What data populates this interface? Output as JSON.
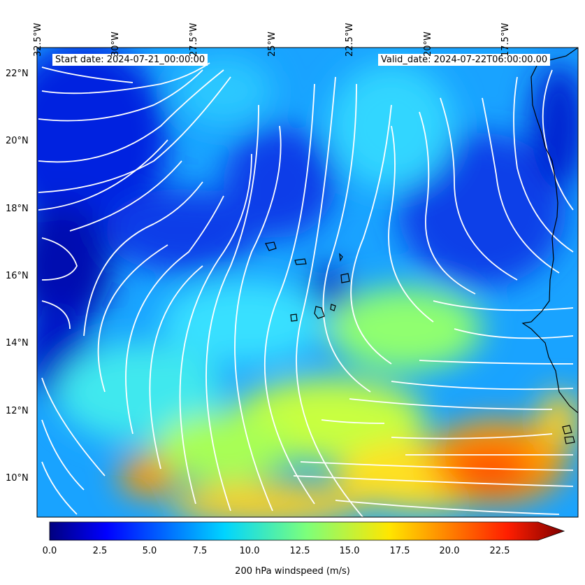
{
  "map": {
    "header_left": "Start date: 2024-07-21_00:00:00",
    "header_right": "Valid_date: 2024-07-22T06:00:00.00",
    "lon_labels": [
      "32.5°W",
      "30°W",
      "27.5°W",
      "25°W",
      "22.5°W",
      "20°W",
      "17.5°W"
    ],
    "lat_labels": [
      "22°N",
      "20°N",
      "18°N",
      "16°N",
      "14°N",
      "12°N",
      "10°N"
    ],
    "field": "200 hPa windspeed",
    "overlay": "streamlines (white)",
    "coastline_color": "#000000",
    "streamline_color": "#ffffff"
  },
  "colorbar": {
    "label": "200 hPa windspeed (m/s)",
    "ticks": [
      "0.0",
      "2.5",
      "5.0",
      "7.5",
      "10.0",
      "12.5",
      "15.0",
      "17.5",
      "20.0",
      "22.5"
    ],
    "range": [
      0,
      25
    ],
    "extend": "max",
    "colormap": "jet"
  }
}
